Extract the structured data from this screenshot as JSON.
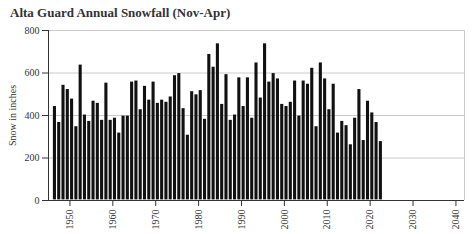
{
  "chart_data": {
    "type": "bar",
    "title": "Alta Guard Annual Snowfall (Nov-Apr)",
    "y_label": "Snow in inches",
    "x": [
      1946,
      1947,
      1948,
      1949,
      1950,
      1951,
      1952,
      1953,
      1954,
      1955,
      1956,
      1957,
      1958,
      1959,
      1960,
      1961,
      1962,
      1963,
      1964,
      1965,
      1966,
      1967,
      1968,
      1969,
      1970,
      1971,
      1972,
      1973,
      1974,
      1975,
      1976,
      1977,
      1978,
      1979,
      1980,
      1981,
      1982,
      1983,
      1984,
      1985,
      1986,
      1987,
      1988,
      1989,
      1990,
      1991,
      1992,
      1993,
      1994,
      1995,
      1996,
      1997,
      1998,
      1999,
      2000,
      2001,
      2002,
      2003,
      2004,
      2005,
      2006,
      2007,
      2008,
      2009,
      2010,
      2011,
      2012,
      2013,
      2014,
      2015,
      2016,
      2017,
      2018,
      2019,
      2020,
      2021,
      2022
    ],
    "values": [
      445,
      370,
      545,
      525,
      480,
      350,
      640,
      405,
      375,
      470,
      460,
      380,
      555,
      380,
      390,
      320,
      400,
      400,
      560,
      565,
      430,
      540,
      475,
      560,
      460,
      475,
      465,
      490,
      590,
      600,
      435,
      310,
      515,
      500,
      520,
      385,
      690,
      630,
      740,
      455,
      595,
      380,
      405,
      580,
      445,
      580,
      390,
      650,
      485,
      740,
      560,
      600,
      575,
      455,
      445,
      465,
      565,
      400,
      565,
      550,
      625,
      350,
      650,
      575,
      430,
      550,
      320,
      375,
      355,
      265,
      390,
      525,
      285,
      470,
      415,
      370,
      280
    ],
    "color": "#111111",
    "xlim": [
      1945,
      2042
    ],
    "xticks": [
      1950,
      1960,
      1970,
      1980,
      1990,
      2000,
      2010,
      2020,
      2030,
      2040
    ],
    "ylim": [
      0,
      800
    ],
    "yticks": [
      0,
      200,
      400,
      600,
      800
    ],
    "grid": true
  }
}
